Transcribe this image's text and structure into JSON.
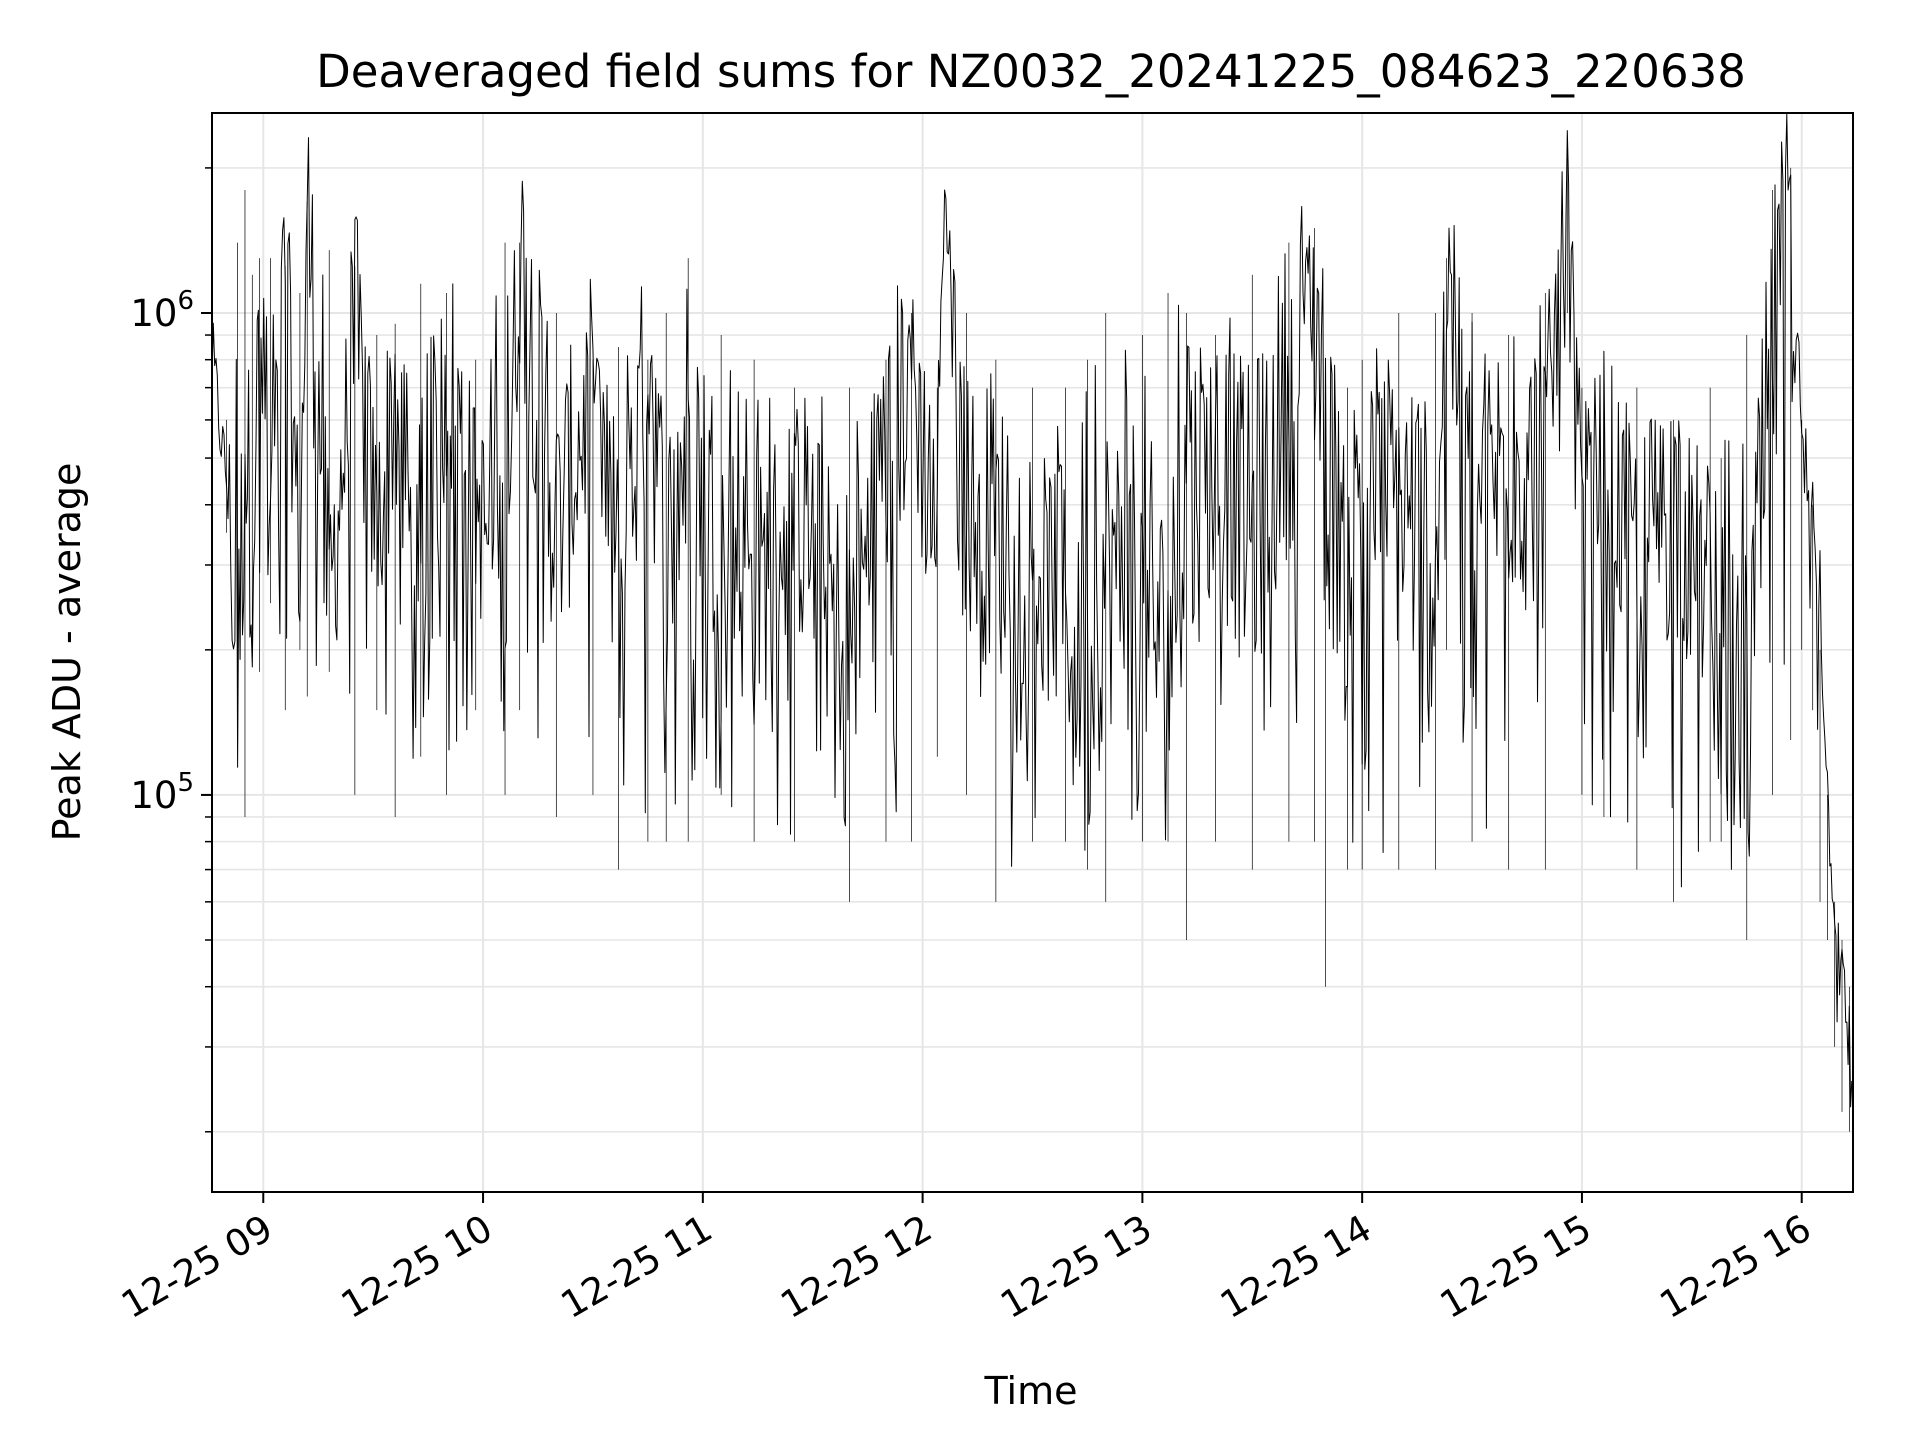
{
  "chart_data": {
    "type": "line",
    "title": "Deaveraged field sums for NZ0032_20241225_084623_220638",
    "xlabel": "Time",
    "ylabel": "Peak ADU - average",
    "y_scale": "log",
    "ylim": [
      15000,
      2600000
    ],
    "xlim": [
      "2024-12-25 08:46",
      "2024-12-25 16:14"
    ],
    "x_ticks": [
      {
        "t": "2024-12-25 09:00",
        "label": "12-25 09"
      },
      {
        "t": "2024-12-25 10:00",
        "label": "12-25 10"
      },
      {
        "t": "2024-12-25 11:00",
        "label": "12-25 11"
      },
      {
        "t": "2024-12-25 12:00",
        "label": "12-25 12"
      },
      {
        "t": "2024-12-25 13:00",
        "label": "12-25 13"
      },
      {
        "t": "2024-12-25 14:00",
        "label": "12-25 14"
      },
      {
        "t": "2024-12-25 15:00",
        "label": "12-25 15"
      },
      {
        "t": "2024-12-25 16:00",
        "label": "12-25 16"
      }
    ],
    "y_ticks": [
      {
        "value": 100000,
        "base": "10",
        "exp": "5"
      },
      {
        "value": 1000000,
        "base": "10",
        "exp": "6"
      }
    ],
    "grid": true,
    "line_color": "#000000",
    "series": [
      {
        "x": [
          "2024-12-25 08:46",
          "2024-12-25 08:50",
          "2024-12-25 08:53",
          "2024-12-25 08:55",
          "2024-12-25 08:57",
          "2024-12-25 08:59",
          "2024-12-25 09:02",
          "2024-12-25 09:06",
          "2024-12-25 09:10",
          "2024-12-25 09:12",
          "2024-12-25 09:18",
          "2024-12-25 09:25",
          "2024-12-25 09:31",
          "2024-12-25 09:36",
          "2024-12-25 09:43",
          "2024-12-25 09:50",
          "2024-12-25 09:58",
          "2024-12-25 10:06",
          "2024-12-25 10:10",
          "2024-12-25 10:20",
          "2024-12-25 10:30",
          "2024-12-25 10:37",
          "2024-12-25 10:45",
          "2024-12-25 10:50",
          "2024-12-25 10:56",
          "2024-12-25 11:05",
          "2024-12-25 11:14",
          "2024-12-25 11:25",
          "2024-12-25 11:40",
          "2024-12-25 11:50",
          "2024-12-25 11:57",
          "2024-12-25 12:04",
          "2024-12-25 12:06",
          "2024-12-25 12:12",
          "2024-12-25 12:20",
          "2024-12-25 12:30",
          "2024-12-25 12:39",
          "2024-12-25 12:45",
          "2024-12-25 12:50",
          "2024-12-25 13:00",
          "2024-12-25 13:07",
          "2024-12-25 13:12",
          "2024-12-25 13:20",
          "2024-12-25 13:30",
          "2024-12-25 13:40",
          "2024-12-25 13:47",
          "2024-12-25 13:50",
          "2024-12-25 13:56",
          "2024-12-25 14:00",
          "2024-12-25 14:10",
          "2024-12-25 14:20",
          "2024-12-25 14:23",
          "2024-12-25 14:30",
          "2024-12-25 14:40",
          "2024-12-25 14:50",
          "2024-12-25 14:56",
          "2024-12-25 15:00",
          "2024-12-25 15:06",
          "2024-12-25 15:15",
          "2024-12-25 15:25",
          "2024-12-25 15:35",
          "2024-12-25 15:38",
          "2024-12-25 15:45",
          "2024-12-25 15:52",
          "2024-12-25 15:57",
          "2024-12-25 16:00",
          "2024-12-25 16:03",
          "2024-12-25 16:05",
          "2024-12-25 16:07",
          "2024-12-25 16:09",
          "2024-12-25 16:11",
          "2024-12-25 16:13",
          "2024-12-25 16:14"
        ],
        "y": [
          800000,
          450000,
          160000,
          600000,
          300000,
          1000000,
          350000,
          1250000,
          300000,
          1700000,
          250000,
          900000,
          350000,
          700000,
          200000,
          800000,
          400000,
          270000,
          1400000,
          350000,
          700000,
          250000,
          800000,
          300000,
          600000,
          350000,
          250000,
          400000,
          200000,
          500000,
          800000,
          300000,
          1800000,
          400000,
          350000,
          300000,
          250000,
          150000,
          300000,
          250000,
          200000,
          400000,
          500000,
          350000,
          700000,
          1000000,
          500000,
          300000,
          500000,
          400000,
          300000,
          1200000,
          400000,
          500000,
          450000,
          2000000,
          350000,
          500000,
          300000,
          400000,
          250000,
          150000,
          150000,
          800000,
          1500000,
          500000,
          400000,
          300000,
          100000,
          60000,
          40000,
          30000,
          25000
        ],
        "range_low": [
          360000,
          350000,
          150000,
          90000,
          200000,
          180000,
          250000,
          150000,
          200000,
          160000,
          180000,
          100000,
          150000,
          90000,
          120000,
          100000,
          150000,
          100000,
          150000,
          90000,
          100000,
          70000,
          80000,
          80000,
          80000,
          100000,
          80000,
          80000,
          60000,
          80000,
          80000,
          120000,
          1800000,
          100000,
          60000,
          80000,
          80000,
          70000,
          60000,
          80000,
          80000,
          50000,
          80000,
          70000,
          80000,
          80000,
          40000,
          70000,
          70000,
          70000,
          70000,
          200000,
          80000,
          70000,
          70000,
          1000000,
          100000,
          90000,
          70000,
          60000,
          80000,
          80000,
          50000,
          100000,
          130000,
          200000,
          150000,
          60000,
          50000,
          30000,
          22000,
          20000,
          18000
        ],
        "range_high": [
          850000,
          600000,
          1400000,
          1800000,
          1200000,
          1300000,
          1300000,
          1250000,
          1100000,
          1700000,
          1350000,
          1250000,
          900000,
          950000,
          1150000,
          1100000,
          800000,
          1400000,
          1400000,
          1000000,
          800000,
          850000,
          800000,
          1000000,
          1300000,
          900000,
          800000,
          700000,
          700000,
          800000,
          1000000,
          700000,
          1800000,
          1000000,
          800000,
          700000,
          700000,
          800000,
          1000000,
          900000,
          1100000,
          1000000,
          900000,
          1200000,
          1400000,
          1500000,
          800000,
          700000,
          800000,
          1000000,
          1000000,
          1300000,
          1000000,
          900000,
          1100000,
          2100000,
          700000,
          700000,
          700000,
          600000,
          700000,
          500000,
          900000,
          1800000,
          2000000,
          600000,
          400000,
          200000,
          100000,
          60000,
          50000,
          40000,
          30000
        ]
      }
    ]
  }
}
